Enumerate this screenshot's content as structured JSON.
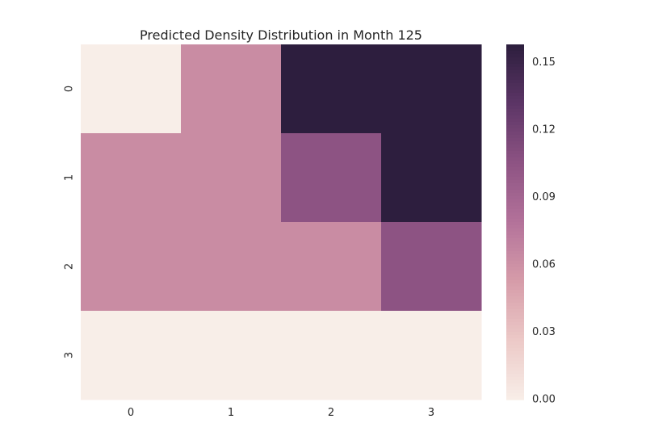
{
  "chart_data": {
    "type": "heatmap",
    "title": "Predicted Density Distribution in Month 125",
    "x_labels": [
      "0",
      "1",
      "2",
      "3"
    ],
    "y_labels": [
      "0",
      "1",
      "2",
      "3"
    ],
    "values": [
      [
        0.0,
        0.0625,
        0.1575,
        0.1575
      ],
      [
        0.0625,
        0.0625,
        0.105,
        0.1575
      ],
      [
        0.0625,
        0.0625,
        0.0625,
        0.105
      ],
      [
        0.0,
        0.0,
        0.0,
        0.0
      ]
    ],
    "vmin": 0.0,
    "vmax": 0.158,
    "colorbar_ticks": [
      "0.00",
      "0.03",
      "0.06",
      "0.09",
      "0.12",
      "0.15"
    ],
    "colorbar_tick_values": [
      0.0,
      0.03,
      0.06,
      0.09,
      0.12,
      0.15
    ],
    "colormap": [
      "#f8eee8",
      "#ecc9c7",
      "#d69ca9",
      "#b3729a",
      "#8d5383",
      "#5c3566",
      "#2c1e3d"
    ],
    "grid": false,
    "legend": "colorbar-right"
  }
}
